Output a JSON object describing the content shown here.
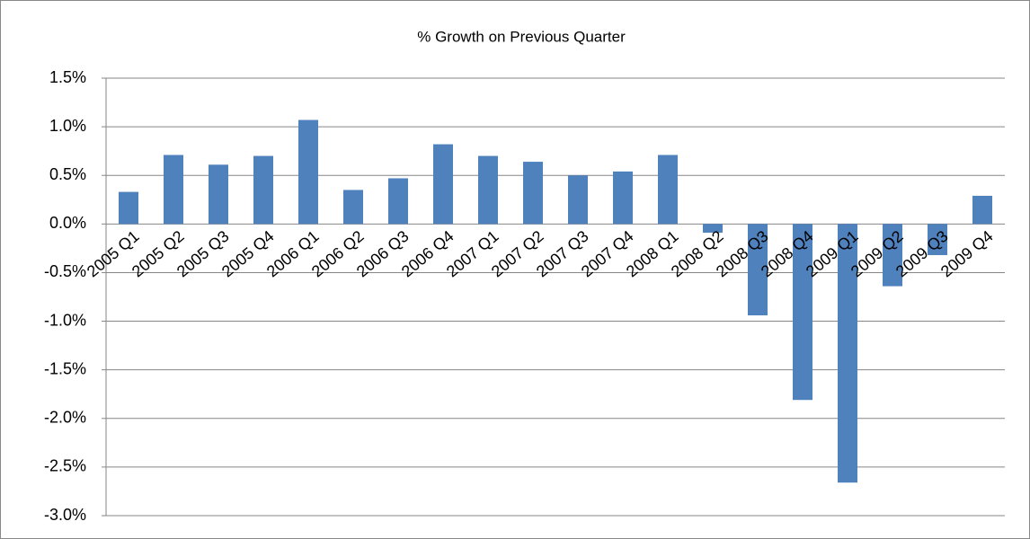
{
  "chart_data": {
    "type": "bar",
    "title": "% Growth on Previous Quarter",
    "categories": [
      "2005 Q1",
      "2005 Q2",
      "2005 Q3",
      "2005 Q4",
      "2006 Q1",
      "2006 Q2",
      "2006 Q3",
      "2006 Q4",
      "2007 Q1",
      "2007 Q2",
      "2007 Q3",
      "2007 Q4",
      "2008 Q1",
      "2008 Q2",
      "2008 Q3",
      "2008 Q4",
      "2009 Q1",
      "2009 Q2",
      "2009 Q3",
      "2009 Q4"
    ],
    "values": [
      0.33,
      0.71,
      0.61,
      0.7,
      1.07,
      0.35,
      0.47,
      0.82,
      0.7,
      0.64,
      0.5,
      0.54,
      0.71,
      -0.09,
      -0.94,
      -1.81,
      -2.66,
      -0.64,
      -0.32,
      0.29
    ],
    "color": "#4f81bd",
    "ylim": [
      -3.0,
      1.5
    ],
    "yticks": [
      {
        "value": -3.0,
        "label": "-3.0%"
      },
      {
        "value": -2.5,
        "label": "-2.5%"
      },
      {
        "value": -2.0,
        "label": "-2.0%"
      },
      {
        "value": -1.5,
        "label": "-1.5%"
      },
      {
        "value": -1.0,
        "label": "-1.0%"
      },
      {
        "value": -0.5,
        "label": "-0.5%"
      },
      {
        "value": 0.0,
        "label": "0.0%"
      },
      {
        "value": 0.5,
        "label": "0.5%"
      },
      {
        "value": 1.0,
        "label": "1.0%"
      },
      {
        "value": 1.5,
        "label": "1.5%"
      }
    ],
    "grid": true
  }
}
